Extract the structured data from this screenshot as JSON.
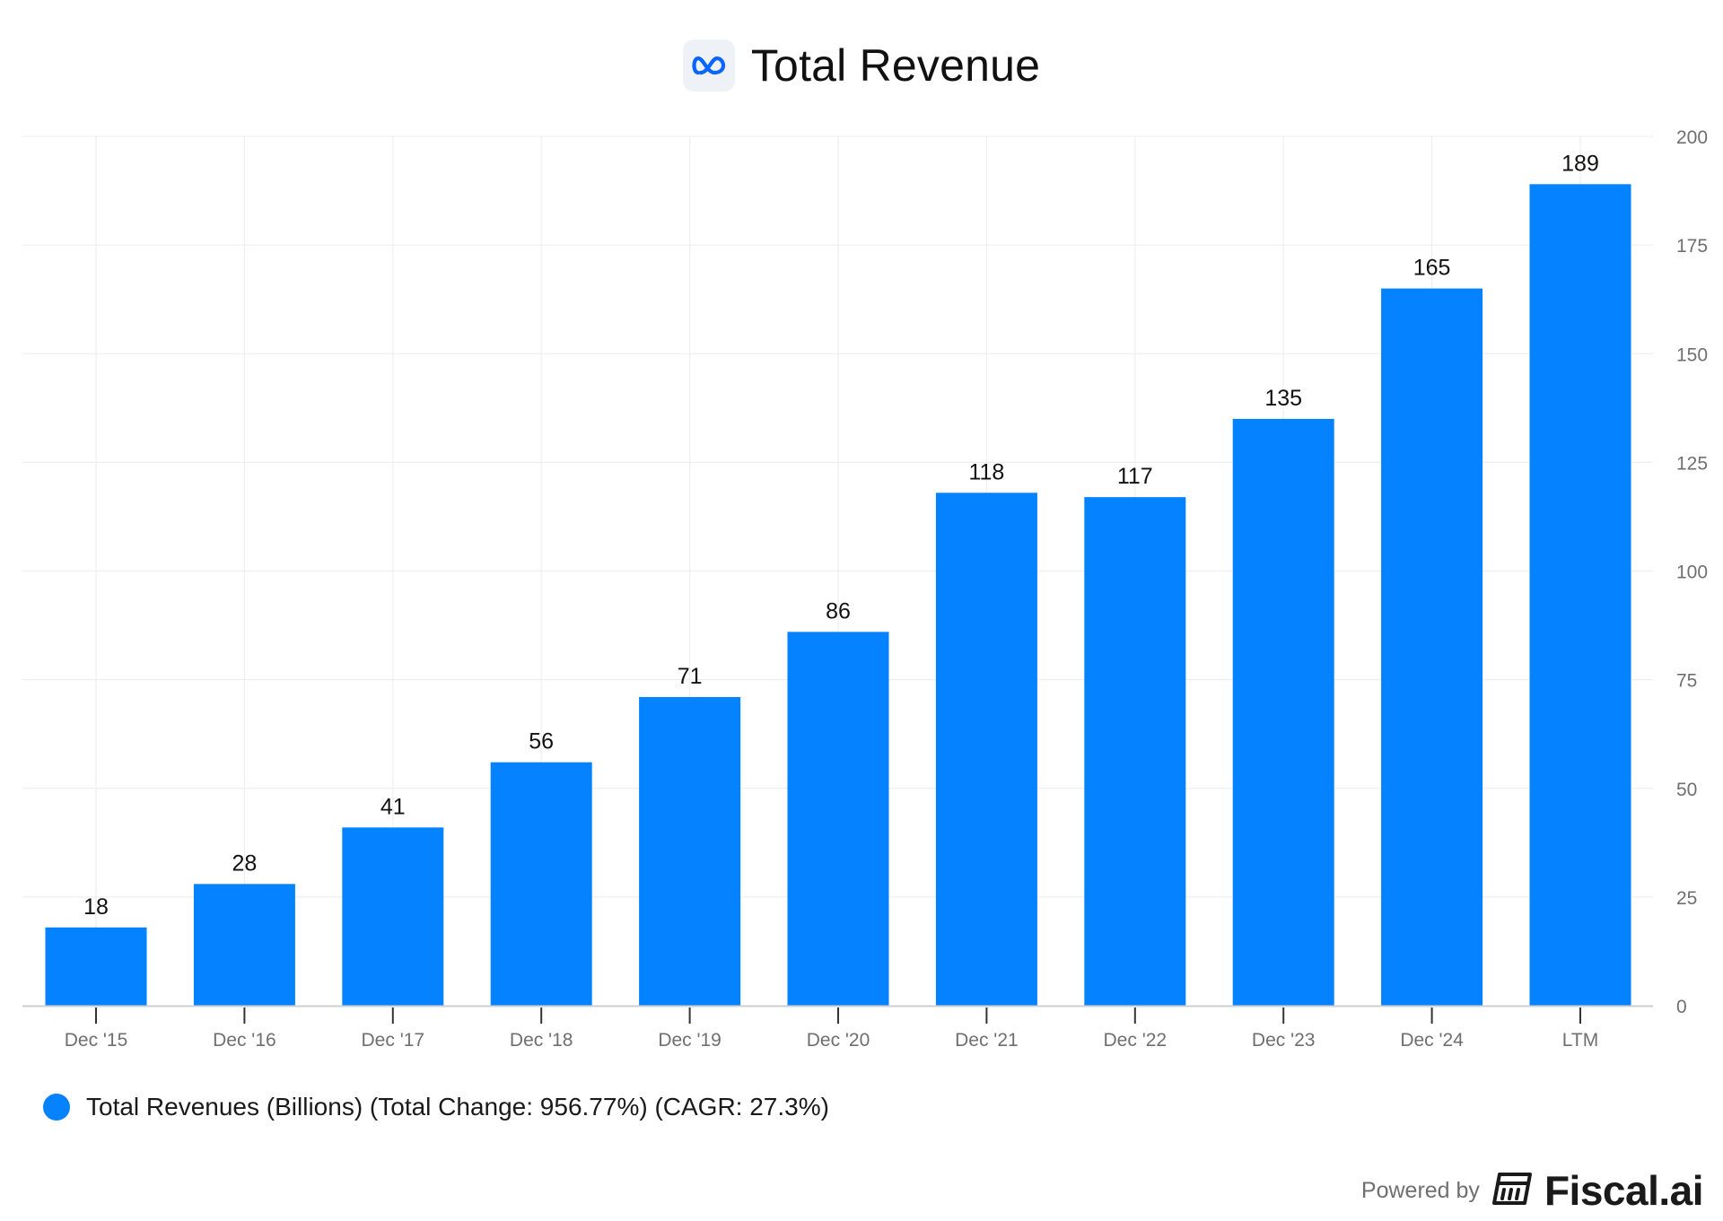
{
  "header": {
    "title": "Total Revenue",
    "logo_icon": "meta-logo-icon"
  },
  "chart_data": {
    "type": "bar",
    "title": "Total Revenue",
    "categories": [
      "Dec '15",
      "Dec '16",
      "Dec '17",
      "Dec '18",
      "Dec '19",
      "Dec '20",
      "Dec '21",
      "Dec '22",
      "Dec '23",
      "Dec '24",
      "LTM"
    ],
    "values": [
      18,
      28,
      41,
      56,
      71,
      86,
      118,
      117,
      135,
      165,
      189
    ],
    "y_ticks": [
      0,
      25,
      50,
      75,
      100,
      125,
      150,
      175,
      200
    ],
    "ylim": [
      0,
      200
    ],
    "y_axis_side": "right",
    "xlabel": "",
    "ylabel": "",
    "grid": true,
    "bar_color": "#0582FF",
    "series_name": "Total Revenues (Billions) (Total Change: 956.77%) (CAGR: 27.3%)"
  },
  "legend": {
    "label": "Total Revenues (Billions) (Total Change: 956.77%) (CAGR: 27.3%)",
    "color": "#0582FF",
    "position": "bottom-left"
  },
  "footer": {
    "powered_by": "Powered by",
    "brand": "Fiscal.ai",
    "brand_icon": "fiscal-logo-icon"
  },
  "colors": {
    "bar": "#0582FF",
    "grid": "#efefef",
    "axis_text": "#6f6f6f",
    "label_text": "#111111"
  }
}
